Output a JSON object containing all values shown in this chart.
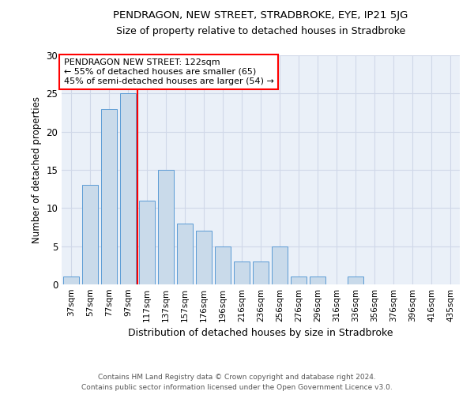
{
  "title1": "PENDRAGON, NEW STREET, STRADBROKE, EYE, IP21 5JG",
  "title2": "Size of property relative to detached houses in Stradbroke",
  "xlabel": "Distribution of detached houses by size in Stradbroke",
  "ylabel": "Number of detached properties",
  "annotation_line1": "PENDRAGON NEW STREET: 122sqm",
  "annotation_line2": "← 55% of detached houses are smaller (65)",
  "annotation_line3": "45% of semi-detached houses are larger (54) →",
  "footer1": "Contains HM Land Registry data © Crown copyright and database right 2024.",
  "footer2": "Contains public sector information licensed under the Open Government Licence v3.0.",
  "bar_labels": [
    "37sqm",
    "57sqm",
    "77sqm",
    "97sqm",
    "117sqm",
    "137sqm",
    "157sqm",
    "176sqm",
    "196sqm",
    "216sqm",
    "236sqm",
    "256sqm",
    "276sqm",
    "296sqm",
    "316sqm",
    "336sqm",
    "356sqm",
    "376sqm",
    "396sqm",
    "416sqm",
    "435sqm"
  ],
  "bar_values": [
    1,
    13,
    23,
    25,
    11,
    15,
    8,
    7,
    5,
    3,
    3,
    5,
    1,
    1,
    0,
    1,
    0,
    0,
    0,
    0,
    0
  ],
  "bar_color": "#c9daea",
  "bar_edge_color": "#5b9bd5",
  "grid_color": "#d0d8e8",
  "background_color": "#eaf0f8",
  "red_line_after_index": 4,
  "ylim": [
    0,
    30
  ],
  "yticks": [
    0,
    5,
    10,
    15,
    20,
    25,
    30
  ]
}
